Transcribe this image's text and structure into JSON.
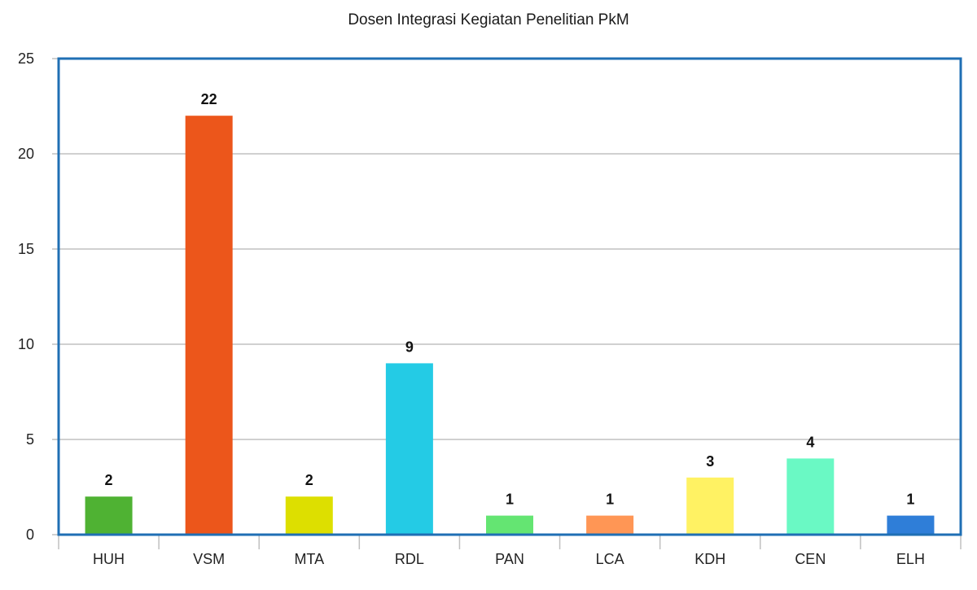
{
  "chart_data": {
    "type": "bar",
    "title": "Dosen Integrasi Kegiatan Penelitian PkM",
    "xlabel": "",
    "ylabel": "",
    "categories": [
      "HUH",
      "VSM",
      "MTA",
      "RDL",
      "PAN",
      "LCA",
      "KDH",
      "CEN",
      "ELH"
    ],
    "values": [
      2,
      22,
      2,
      9,
      1,
      1,
      3,
      4,
      1
    ],
    "colors": [
      "#4fb233",
      "#ec561b",
      "#dddf00",
      "#24cbe5",
      "#64e572",
      "#ff9655",
      "#fff263",
      "#6af9c4",
      "#2f7ed8"
    ],
    "ylim": [
      0,
      25
    ],
    "yticks": [
      0,
      5,
      10,
      15,
      20,
      25
    ],
    "grid": true,
    "legend": "none",
    "plot_border_color": "#1f6fb4",
    "grid_color": "#c0c0c0"
  }
}
